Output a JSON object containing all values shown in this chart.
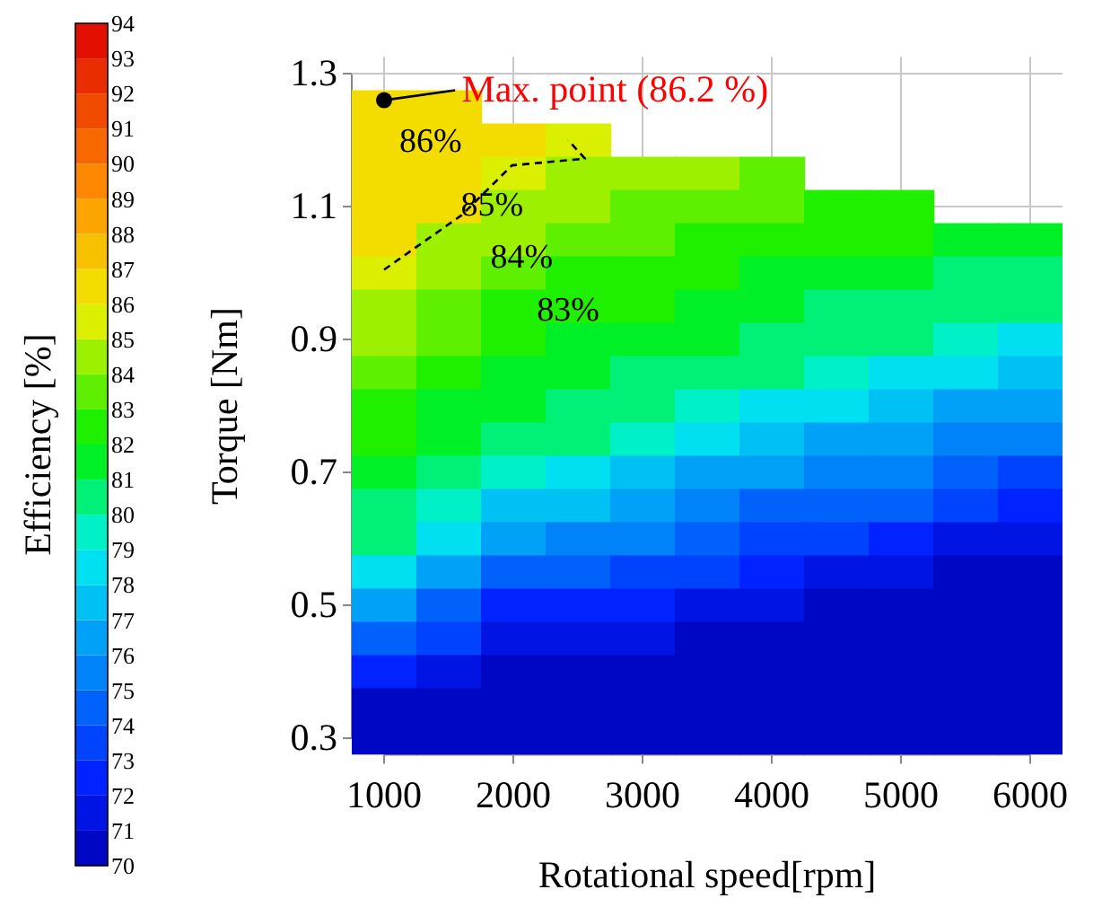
{
  "chart_data": {
    "type": "heatmap",
    "xlabel": "Rotational speed[rpm]",
    "ylabel": "Torque [Nm]",
    "clabel": "Efficiency [%]",
    "categories": [
      "1000",
      null,
      "2000",
      null,
      "3000",
      null,
      "4000",
      null,
      "5000",
      null,
      "6000"
    ],
    "y_categories": [
      "1.3",
      null,
      null,
      null,
      "1.1",
      null,
      null,
      null,
      "0.9",
      null,
      null,
      null,
      "0.7",
      null,
      null,
      null,
      "0.5",
      null,
      null,
      null,
      "0.3"
    ],
    "cells": [
      [
        null,
        null,
        null,
        null,
        null,
        null,
        null,
        null,
        null,
        null,
        null
      ],
      [
        86.5,
        86.5,
        null,
        null,
        null,
        null,
        null,
        null,
        null,
        null,
        null
      ],
      [
        86.5,
        86.5,
        86.5,
        85.5,
        null,
        null,
        null,
        null,
        null,
        null,
        null
      ],
      [
        86.5,
        86.5,
        85.5,
        84.5,
        84.5,
        84.5,
        83.5,
        null,
        null,
        null,
        null
      ],
      [
        86.5,
        86.5,
        84.5,
        84.5,
        83.5,
        83.5,
        83.5,
        82.5,
        82.5,
        null,
        null
      ],
      [
        86.5,
        84.5,
        84.5,
        83.5,
        83.5,
        82.5,
        82.5,
        82.5,
        82.5,
        81.5,
        81.5
      ],
      [
        85.5,
        84.5,
        83.5,
        82.5,
        82.5,
        82.5,
        81.5,
        81.5,
        81.5,
        80.5,
        80.5
      ],
      [
        84.5,
        83.5,
        82.5,
        82.5,
        82.5,
        81.5,
        81.5,
        80.5,
        80.5,
        80.5,
        80.5
      ],
      [
        84.5,
        83.5,
        82.5,
        81.5,
        81.5,
        81.5,
        80.5,
        80.5,
        80.5,
        79.5,
        78.5
      ],
      [
        83.5,
        82.5,
        81.5,
        81.5,
        80.5,
        80.5,
        80.5,
        79.5,
        78.5,
        78.5,
        77.5
      ],
      [
        82.5,
        81.5,
        81.5,
        80.5,
        80.5,
        79.5,
        78.5,
        78.5,
        77.5,
        76.5,
        76.5
      ],
      [
        82.5,
        81.5,
        80.5,
        80.5,
        79.5,
        78.5,
        77.5,
        76.5,
        76.5,
        75.5,
        75.5
      ],
      [
        81.5,
        80.5,
        79.5,
        78.5,
        77.5,
        76.5,
        76.5,
        75.5,
        75.5,
        74.5,
        73.5
      ],
      [
        80.5,
        79.5,
        77.5,
        77.5,
        76.5,
        75.5,
        74.5,
        74.5,
        74.5,
        73.5,
        72.5
      ],
      [
        80.5,
        78.5,
        76.5,
        75.5,
        75.5,
        74.5,
        73.5,
        73.5,
        72.5,
        71.5,
        71.5
      ],
      [
        78.5,
        76.5,
        74.5,
        74.5,
        73.5,
        73.5,
        72.5,
        71.5,
        71.5,
        70.5,
        70.5
      ],
      [
        76.5,
        74.5,
        72.5,
        72.5,
        72.5,
        71.5,
        71.5,
        70.5,
        70.5,
        70.5,
        70.5
      ],
      [
        74.5,
        73.5,
        71.5,
        71.5,
        71.5,
        70.5,
        70.5,
        70.5,
        70.5,
        70.5,
        70.5
      ],
      [
        72.5,
        71.5,
        70.5,
        70.5,
        70.5,
        70.5,
        70.5,
        70.5,
        70.5,
        70.5,
        70.5
      ],
      [
        70.5,
        70.5,
        70.5,
        70.5,
        70.5,
        70.5,
        70.5,
        70.5,
        70.5,
        70.5,
        70.5
      ],
      [
        70.5,
        70.5,
        70.5,
        70.5,
        70.5,
        70.5,
        70.5,
        70.5,
        70.5,
        70.5,
        70.5
      ]
    ],
    "clim": [
      70,
      94
    ],
    "cticks": [
      70,
      71,
      72,
      73,
      74,
      75,
      76,
      77,
      78,
      79,
      80,
      81,
      82,
      83,
      84,
      85,
      86,
      87,
      88,
      89,
      90,
      91,
      92,
      93,
      94
    ],
    "grid": true,
    "annotations": [
      "Max. point (86.2 %)",
      "86%",
      "85%",
      "84%",
      "83%"
    ]
  }
}
